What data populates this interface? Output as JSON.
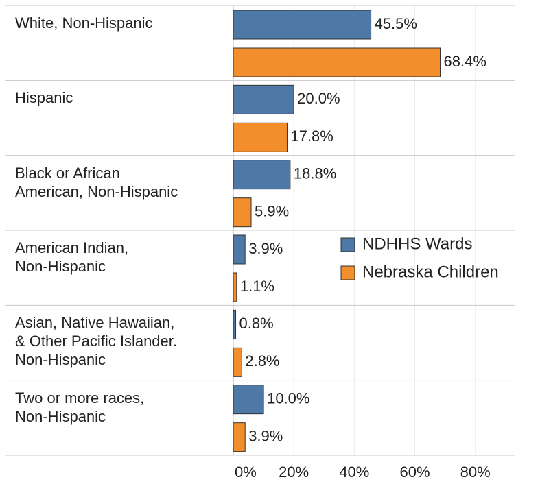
{
  "chart_data": {
    "type": "hbar",
    "categories": [
      "White, Non-Hispanic",
      "Hispanic",
      "Black or African\nAmerican, Non-Hispanic",
      "American Indian,\nNon-Hispanic",
      "Asian, Native Hawaiian,\n& Other Pacific Islander.\nNon-Hispanic",
      "Two or more races,\nNon-Hispanic"
    ],
    "series": [
      {
        "name": "NDHHS Wards",
        "color": "#4e79a7",
        "values": [
          45.5,
          20.0,
          18.8,
          3.9,
          0.8,
          10.0
        ],
        "value_labels": [
          "45.5%",
          "20.0%",
          "18.8%",
          "3.9%",
          "0.8%",
          "10.0%"
        ]
      },
      {
        "name": "Nebraska Children",
        "color": "#f28e2b",
        "values": [
          68.4,
          17.8,
          5.9,
          1.1,
          2.8,
          3.9
        ],
        "value_labels": [
          "68.4%",
          "17.8%",
          "5.9%",
          "1.1%",
          "2.8%",
          "3.9%"
        ]
      }
    ],
    "xlim": [
      0,
      93
    ],
    "xticks": [
      {
        "value": 0,
        "label": "0%"
      },
      {
        "value": 20,
        "label": "20%"
      },
      {
        "value": 40,
        "label": "40%"
      },
      {
        "value": 60,
        "label": "60%"
      },
      {
        "value": 80,
        "label": "80%"
      }
    ],
    "grid": true
  }
}
